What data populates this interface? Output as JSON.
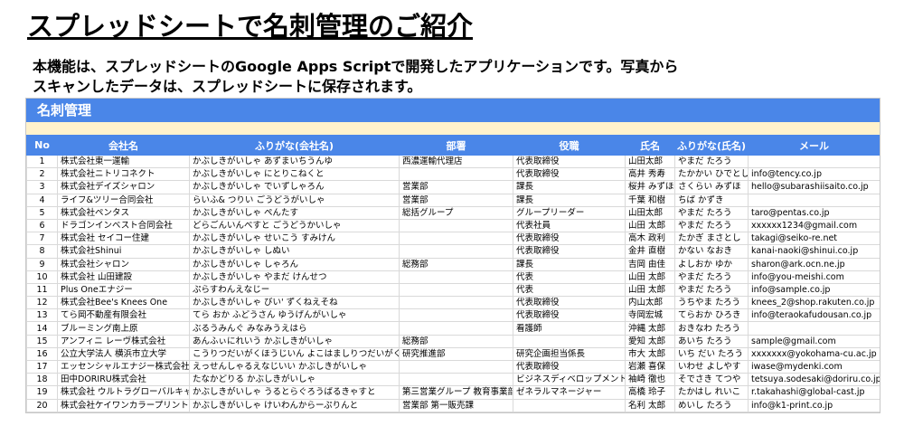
{
  "header": {
    "title": "スプレッドシートで名刺管理のご紹介",
    "description": [
      "本機能は、スプレッドシートのGoogle Apps Scriptで開発したアプリケーションです。写真から",
      "スキャンしたデータは、スプレッドシートに保存されます。"
    ]
  },
  "sheet": {
    "title": "名刺管理",
    "columns": [
      "No",
      "会社名",
      "ふりがな(会社名)",
      "部署",
      "役職",
      "氏名",
      "ふりがな(氏名)",
      "メール"
    ],
    "rows": [
      [
        1,
        "株式会社東一運輸",
        "かぶしきがいしゃ あずまいちうんゆ",
        "西濃運輸代理店",
        "代表取締役",
        "山田太郎",
        "やまだ たろう",
        null
      ],
      [
        2,
        "株式会社ニトリコネクト",
        "かぶしきがいしゃ にとりこねくと",
        null,
        "代表取締役",
        "高井 秀寿",
        "たかかい ひでとし",
        "info@tency.co.jp"
      ],
      [
        3,
        "株式会社デイズシャロン",
        "かぶしきがいしゃ でいずしゃろん",
        "営業部",
        "課長",
        "桜井 みずほ",
        "さくらい みずほ",
        "hello@subarashiisaito.co.jp"
      ],
      [
        4,
        "ライフ&ツリー合同会社",
        "らいふ& つりい ごうどうがいしゃ",
        "営業部",
        "課長",
        "千葉 和樹",
        "ちば かずき",
        null
      ],
      [
        5,
        "株式会社ペンタス",
        "かぶしきがいしゃ ぺんたす",
        "総括グループ",
        "グループリーダー",
        "山田太郎",
        "やまだ たろう",
        "taro@pentas.co.jp"
      ],
      [
        6,
        "ドラゴンインベスト合同会社",
        "どらごんいんべすと ごうどうかいしゃ",
        null,
        "代表社員",
        "山田 太郎",
        "やまだ たろう",
        "xxxxxx1234@gmail.com"
      ],
      [
        7,
        "株式会社 セイコー住建",
        "かぶしきがいしゃ せいこう すみけん",
        null,
        "代表取締役",
        "高木 政利",
        "たかぎ まさとし",
        "takagi@seiko-re.net"
      ],
      [
        8,
        "株式会社Shinui",
        "かぶしきがいしゃ しぬい",
        null,
        "代表取締役",
        "金井 直樹",
        "かない なおき",
        "kanai-naoki@shinui.co.jp"
      ],
      [
        9,
        "株式会社シャロン",
        "かぶしきがいしゃ しゃろん",
        "総務部",
        "課長",
        "吉岡 由佳",
        "よしおか ゆか",
        "sharon@ark.ocn.ne.jp"
      ],
      [
        10,
        "株式会社 山田建設",
        "かぶしきがいしゃ やまだ けんせつ",
        null,
        "代表",
        "山田 太郎",
        "やまだ たろう",
        "info@you-meishi.com"
      ],
      [
        11,
        "Plus Oneエナジー",
        "ぷらすわんえなじー",
        null,
        "代表",
        "山田 太郎",
        "やまだ たろう",
        "info@sample.co.jp"
      ],
      [
        12,
        "株式会社Bee's Knees One",
        "かぶしきがいしゃ びい' ずくねえそね",
        null,
        "代表取締役",
        "内山太郎",
        "うちやま たろう",
        "knees_2@shop.rakuten.co.jp"
      ],
      [
        13,
        "てら岡不動産有限会社",
        "てら おか ふどうさん ゆうげんがいしゃ",
        null,
        "代表取締役",
        "寺岡宏城",
        "てらおか ひろき",
        "info@teraokafudousan.co.jp"
      ],
      [
        14,
        "ブルーミング南上原",
        "ぶるうみんぐ みなみうえはら",
        null,
        "看護師",
        "沖縄 太郎",
        "おきなわ たろう",
        null
      ],
      [
        15,
        "アンフィニ レーヴ株式会社",
        "あんふぃにれいう かぶしきがいしゃ",
        "総務部",
        null,
        "愛知 太郎",
        "あいち たろう",
        "sample@gmail.com"
      ],
      [
        16,
        "公立大学法人 横浜市立大学",
        "こうりつだいがくほうじいん よこはましりつだいがく",
        "研究推進部",
        "研究企画担当係長",
        "市大 太郎",
        "いち だい たろう",
        "xxxxxxx@yokohama-cu.ac.jp"
      ],
      [
        17,
        "エッセンシャルエナジー株式会社",
        "えっせんしゃるえなじいい かぶしきがいしゃ",
        null,
        "代表取締役",
        "岩瀬 喜保",
        "いわせ よしやす",
        "iwase@mydenki.com"
      ],
      [
        18,
        "田中DORIRU株式会社",
        "たなかどりる かぶしきがいしゃ",
        null,
        "ビジネスディベロップメント",
        "袖崎 徹也",
        "そでさき てつや",
        "tetsuya.sodesaki@doriru.co.jp"
      ],
      [
        19,
        "株式会社 ウルトラグローバルキャ",
        "かぶしきがいしゃ うるとらぐろうばるきゃすと",
        "第三営業グループ 教育事業部",
        "ゼネラルマネージャー",
        "高橋 玲子",
        "たかはし れいこ",
        "r.takahashi@global-cast.jp"
      ],
      [
        20,
        "株式会社ケイワンカラープリント",
        "かぶしきがいしゃ けいわんからーぷりんと",
        "営業部 第一販売課",
        null,
        "名利 太郎",
        "めいし たろう",
        "info@k1-print.co.jp"
      ]
    ]
  }
}
